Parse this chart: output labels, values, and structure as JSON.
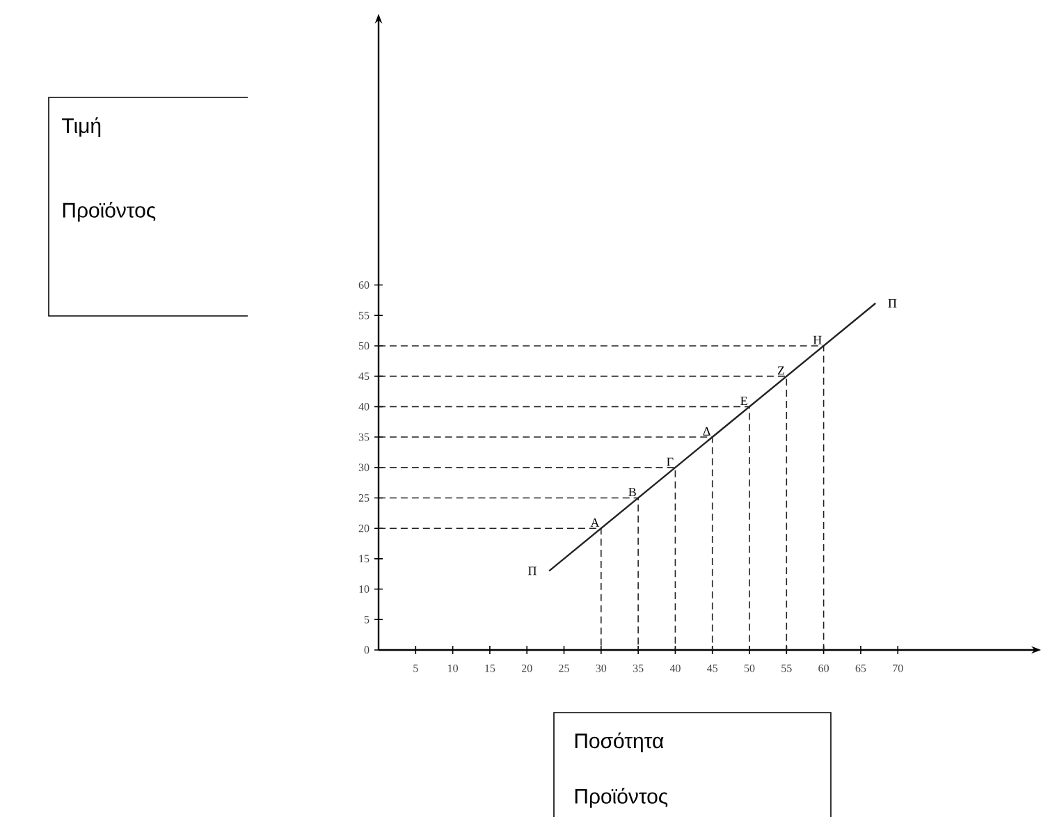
{
  "chart_data": {
    "type": "line",
    "xlabel": "Ποσότητα Προϊόντος",
    "series": [
      {
        "name": "Π",
        "color": "#222222",
        "x": [
          23,
          67
        ],
        "values": [
          13,
          57
        ]
      },
      {
        "color": "#222222",
        "line_style": "dashed",
        "x": [
          0,
          30,
          30
        ],
        "values": [
          20,
          20,
          0
        ]
      },
      {
        "color": "#222222",
        "line_style": "dashed",
        "x": [
          0,
          35,
          35
        ],
        "values": [
          25,
          25,
          0
        ]
      },
      {
        "color": "#222222",
        "line_style": "dashed",
        "x": [
          0,
          40,
          40
        ],
        "values": [
          30,
          30,
          0
        ]
      },
      {
        "color": "#222222",
        "line_style": "dashed",
        "x": [
          0,
          45,
          45
        ],
        "values": [
          35,
          35,
          0
        ]
      },
      {
        "color": "#222222",
        "line_style": "dashed",
        "x": [
          0,
          50,
          50
        ],
        "values": [
          40,
          40,
          0
        ]
      },
      {
        "color": "#222222",
        "line_style": "dashed",
        "x": [
          0,
          55,
          55
        ],
        "values": [
          45,
          45,
          0
        ]
      },
      {
        "color": "#222222",
        "line_style": "dashed",
        "x": [
          0,
          60,
          60
        ],
        "values": [
          50,
          50,
          0
        ]
      }
    ],
    "annotations": [
      "Τιμή Προϊόντος",
      {
        "text": "Α",
        "x": 30,
        "y": 20
      },
      {
        "text": "Β",
        "x": 35,
        "y": 25
      },
      {
        "text": "Γ",
        "x": 40,
        "y": 30
      },
      {
        "text": "Δ",
        "x": 45,
        "y": 35
      },
      {
        "text": "Ε",
        "x": 50,
        "y": 40
      },
      {
        "text": "Ζ",
        "x": 55,
        "y": 45
      },
      {
        "text": "Η",
        "x": 60,
        "y": 50
      }
    ],
    "xlim": [
      0,
      88
    ],
    "ylim": [
      0,
      103
    ],
    "xticks": [
      5,
      10,
      15,
      20,
      25,
      30,
      35,
      40,
      45,
      50,
      55,
      60,
      65,
      70
    ],
    "yticks": [
      0,
      5,
      10,
      15,
      20,
      25,
      30,
      35,
      40,
      45,
      50,
      55,
      60
    ],
    "grid": false,
    "marker": "none",
    "line_style": "solid",
    "tick_labels": "xy"
  }
}
